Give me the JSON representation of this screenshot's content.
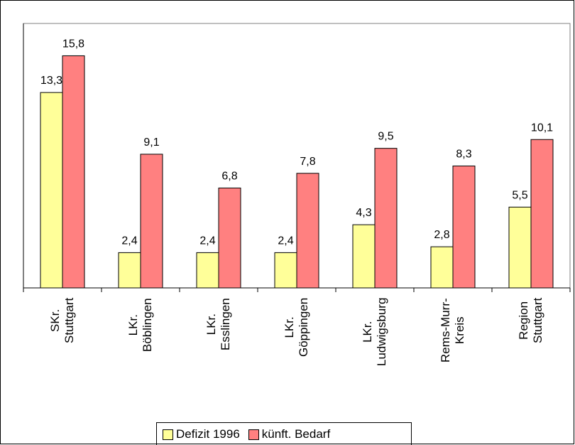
{
  "chart_data": {
    "type": "bar",
    "categories": [
      "SKr.\nStuttgart",
      "LKr.\nBöblingen",
      "LKr.\nEsslingen",
      "LKr.\nGöppingen",
      "LKr.\nLudwigsburg",
      "Rems-Murr-\nKreis",
      "Region\nStuttgart"
    ],
    "series": [
      {
        "name": "Defizit 1996",
        "color": "#ffff99",
        "values": [
          13.3,
          2.4,
          2.4,
          2.4,
          4.3,
          2.8,
          5.5
        ],
        "value_labels": [
          "13,3",
          "2,4",
          "2,4",
          "2,4",
          "4,3",
          "2,8",
          "5,5"
        ]
      },
      {
        "name": "künft. Bedarf",
        "color": "#ff8080",
        "values": [
          15.8,
          9.1,
          6.8,
          7.8,
          9.5,
          8.3,
          10.1
        ],
        "value_labels": [
          "15,8",
          "9,1",
          "6,8",
          "7,8",
          "9,5",
          "8,3",
          "10,1"
        ]
      }
    ],
    "ylim": [
      0,
      18
    ]
  }
}
